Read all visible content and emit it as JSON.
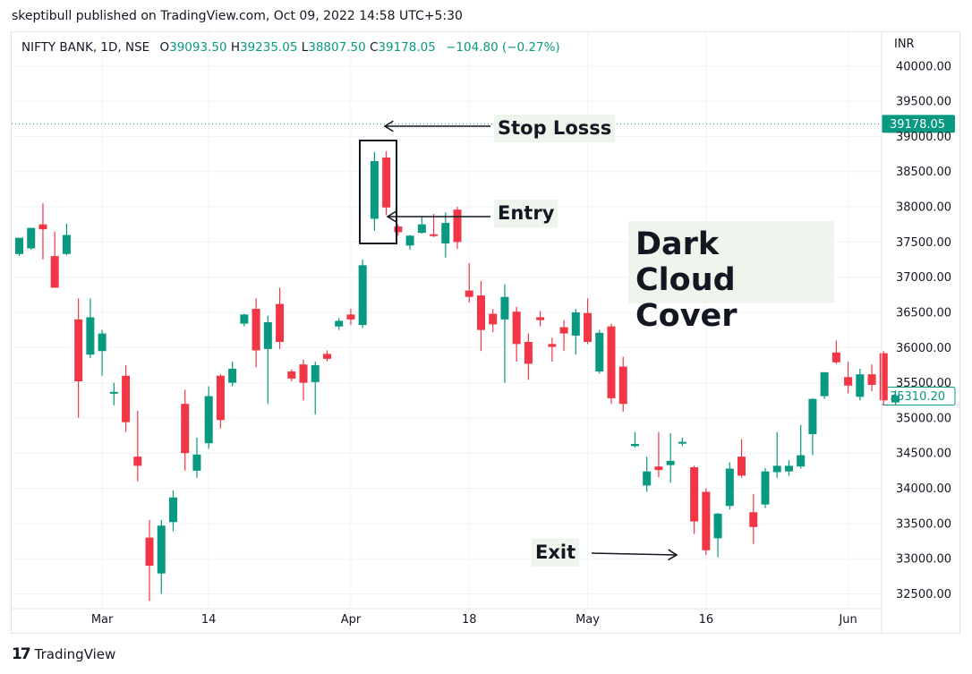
{
  "publisher": "skeptibull published on TradingView.com, Oct 09, 2022 14:58 UTC+5:30",
  "symbol": "NIFTY BANK, 1D, NSE",
  "ohlc": {
    "o_label": "O",
    "o": "39093.50",
    "h_label": "H",
    "h": "39235.05",
    "l_label": "L",
    "l": "38807.50",
    "c_label": "C",
    "c": "39178.05",
    "change": "−104.80 (−0.27%)"
  },
  "currency": "INR",
  "brand": "TradingView",
  "colors": {
    "up": "#089981",
    "down": "#f23645",
    "grid": "#f0f3fa",
    "axis_text": "#131722",
    "annotation_bg": "#eef5ec"
  },
  "annotations": {
    "stop_loss": "Stop Losss",
    "entry": "Entry",
    "exit": "Exit",
    "pattern_line1": "Dark Cloud",
    "pattern_line2": "Cover"
  },
  "chart_data": {
    "type": "candlestick",
    "y_axis_side": "right",
    "ylim": [
      32300,
      40200
    ],
    "yticks": [
      32500,
      33000,
      33500,
      34000,
      34500,
      35000,
      35500,
      36000,
      36500,
      37000,
      37500,
      38000,
      38500,
      39000,
      39500,
      40000
    ],
    "ytick_labels": [
      "32500.00",
      "33000.00",
      "33500.00",
      "34000.00",
      "34500.00",
      "35000.00",
      "35500.00",
      "36000.00",
      "36500.00",
      "37000.00",
      "37500.00",
      "38000.00",
      "38500.00",
      "39000.00",
      "39500.00",
      "40000.00"
    ],
    "x_labels": [
      {
        "label": "Mar",
        "index": 7
      },
      {
        "label": "14",
        "index": 16
      },
      {
        "label": "Apr",
        "index": 28
      },
      {
        "label": "18",
        "index": 38
      },
      {
        "label": "May",
        "index": 48
      },
      {
        "label": "16",
        "index": 58
      },
      {
        "label": "Jun",
        "index": 70
      }
    ],
    "price_lines": [
      {
        "value": 39178.05,
        "label": "39178.05",
        "style": "dotted",
        "highlight": "#089981"
      },
      {
        "value": 35310.2,
        "label": "35310.20",
        "style": "none",
        "highlight": "#089981"
      }
    ],
    "candles": [
      [
        37330,
        37560,
        37300,
        37560
      ],
      [
        37410,
        37700,
        37390,
        37700
      ],
      [
        37750,
        38050,
        37250,
        37680
      ],
      [
        37300,
        37650,
        36850,
        36850
      ],
      [
        37330,
        37760,
        37310,
        37600
      ],
      [
        36400,
        36700,
        35000,
        35520
      ],
      [
        35900,
        36700,
        35850,
        36430
      ],
      [
        35950,
        36250,
        35600,
        36200
      ],
      [
        35350,
        35500,
        35180,
        35370
      ],
      [
        35600,
        35750,
        34800,
        34940
      ],
      [
        34450,
        35100,
        34100,
        34320
      ],
      [
        33300,
        33550,
        32400,
        32900
      ],
      [
        32790,
        33550,
        32500,
        33470
      ],
      [
        33520,
        33970,
        33390,
        33870
      ],
      [
        35200,
        35400,
        34250,
        34500
      ],
      [
        34250,
        34720,
        34150,
        34480
      ],
      [
        34640,
        35450,
        34560,
        35310
      ],
      [
        35600,
        35620,
        34850,
        34970
      ],
      [
        35500,
        35800,
        35450,
        35700
      ],
      [
        36340,
        36480,
        36300,
        36470
      ],
      [
        36550,
        36700,
        35720,
        35960
      ],
      [
        35980,
        36450,
        35200,
        36360
      ],
      [
        36620,
        36850,
        35980,
        36080
      ],
      [
        35660,
        35690,
        35520,
        35560
      ],
      [
        35760,
        35830,
        35250,
        35500
      ],
      [
        35510,
        35800,
        35050,
        35750
      ],
      [
        35910,
        35960,
        35800,
        35840
      ],
      [
        36300,
        36420,
        36250,
        36380
      ],
      [
        36470,
        36550,
        36320,
        36400
      ],
      [
        36320,
        37250,
        36280,
        37170
      ],
      [
        37830,
        38780,
        37660,
        38650
      ],
      [
        38700,
        38790,
        37880,
        37990
      ],
      [
        37720,
        37750,
        37590,
        37640
      ],
      [
        37450,
        37600,
        37390,
        37590
      ],
      [
        37630,
        37860,
        37620,
        37750
      ],
      [
        37610,
        37900,
        37570,
        37600
      ],
      [
        37480,
        37920,
        37280,
        37770
      ],
      [
        37960,
        38000,
        37400,
        37500
      ],
      [
        36810,
        37200,
        36640,
        36720
      ],
      [
        36740,
        36950,
        35950,
        36250
      ],
      [
        36480,
        36550,
        36220,
        36330
      ],
      [
        36400,
        36900,
        35500,
        36720
      ],
      [
        36510,
        36580,
        35800,
        36050
      ],
      [
        36080,
        36200,
        35540,
        35770
      ],
      [
        36430,
        36520,
        36300,
        36390
      ],
      [
        36050,
        36140,
        35800,
        36010
      ],
      [
        36290,
        36390,
        35950,
        36200
      ],
      [
        36170,
        36550,
        35900,
        36500
      ],
      [
        36490,
        36700,
        36050,
        36080
      ],
      [
        35660,
        36250,
        35630,
        36210
      ],
      [
        36300,
        36340,
        35200,
        35280
      ],
      [
        35730,
        35870,
        35090,
        35200
      ],
      [
        34600,
        34800,
        34580,
        34630
      ],
      [
        34040,
        34450,
        33950,
        34240
      ],
      [
        34310,
        34800,
        34160,
        34260
      ],
      [
        34330,
        34780,
        34080,
        34390
      ],
      [
        34640,
        34720,
        34600,
        34660
      ],
      [
        34300,
        34320,
        33350,
        33530
      ],
      [
        33950,
        34000,
        33050,
        33120
      ],
      [
        33290,
        33650,
        33020,
        33640
      ],
      [
        33750,
        34370,
        33700,
        34280
      ],
      [
        34450,
        34700,
        34150,
        34180
      ],
      [
        33660,
        33920,
        33210,
        33450
      ],
      [
        33770,
        34290,
        33720,
        34240
      ],
      [
        34230,
        34800,
        34150,
        34320
      ],
      [
        34240,
        34400,
        34180,
        34320
      ],
      [
        34310,
        34900,
        34280,
        34470
      ],
      [
        34770,
        35280,
        34470,
        35270
      ],
      [
        35310,
        35620,
        35270,
        35650
      ],
      [
        35930,
        36100,
        35770,
        35790
      ],
      [
        35580,
        35800,
        35350,
        35460
      ],
      [
        35300,
        35700,
        35250,
        35620
      ],
      [
        35620,
        35760,
        35380,
        35470
      ],
      [
        35920,
        35950,
        35180,
        35250
      ],
      [
        35220,
        35390,
        35180,
        35320
      ]
    ]
  }
}
